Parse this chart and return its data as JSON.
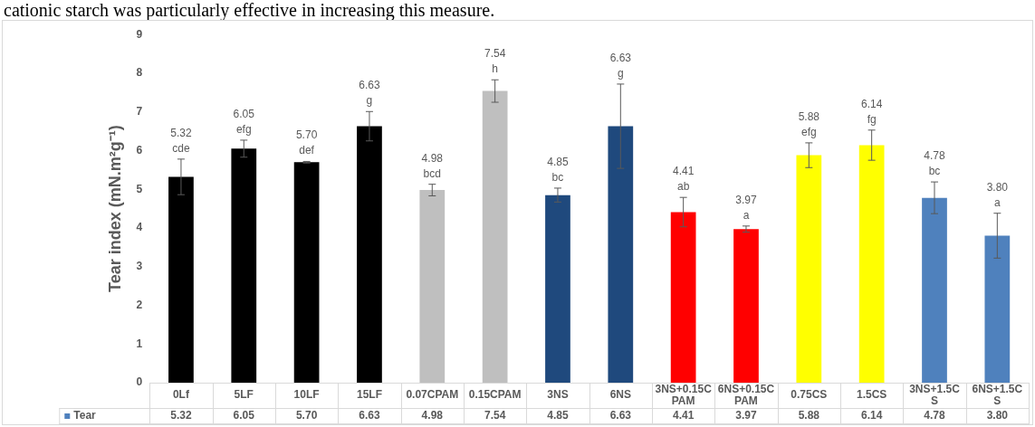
{
  "chart_data": {
    "type": "bar",
    "ylabel": "Tear index (mN.m²g⁻¹)",
    "categories": [
      "0Lf",
      "5LF",
      "10LF",
      "15LF",
      "0.07CPAM",
      "0.15CPAM",
      "3NS",
      "6NS",
      "3NS+0.15CPAM",
      "6NS+0.15CPAM",
      "0.75CS",
      "1.5CS",
      "3NS+1.5CS",
      "6NS+1.5CS"
    ],
    "series": [
      {
        "name": "Tear",
        "color": "#4f81bd",
        "values": [
          5.32,
          6.05,
          5.7,
          6.63,
          4.98,
          7.54,
          4.85,
          6.63,
          4.41,
          3.97,
          5.88,
          6.14,
          4.78,
          3.8
        ],
        "value_labels": [
          "5.32",
          "6.05",
          "5.70",
          "6.63",
          "4.98",
          "7.54",
          "4.85",
          "6.63",
          "4.41",
          "3.97",
          "5.88",
          "6.14",
          "4.78",
          "3.80"
        ],
        "colors": [
          "#000000",
          "#000000",
          "#000000",
          "#000000",
          "#bfbfbf",
          "#bfbfbf",
          "#1f497d",
          "#1f497d",
          "#ff0000",
          "#ff0000",
          "#ffff00",
          "#ffff00",
          "#4f81bd",
          "#4f81bd"
        ],
        "errors": [
          0.46,
          0.22,
          0.02,
          0.38,
          0.15,
          0.29,
          0.18,
          1.09,
          0.38,
          0.08,
          0.32,
          0.39,
          0.41,
          0.58
        ]
      }
    ],
    "ylim": [
      0,
      9
    ],
    "yticks": [
      0,
      1,
      2,
      3,
      4,
      5,
      6,
      7,
      8,
      9
    ],
    "legend": "bottom",
    "annotations": [
      "cationic starch was particularly effective in increasing this measure.",
      "cde",
      "efg",
      "def",
      "g",
      "bcd",
      "h",
      "bc",
      "g",
      "ab",
      "a",
      "efg",
      "fg",
      "bc",
      "a"
    ]
  }
}
